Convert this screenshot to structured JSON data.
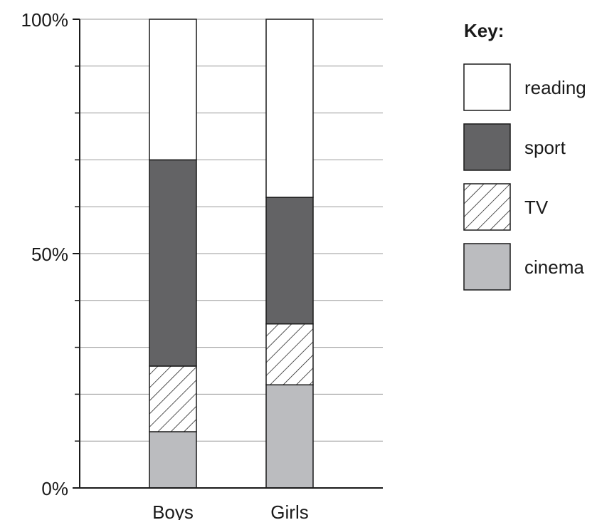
{
  "chart_data": {
    "type": "bar",
    "stacked": true,
    "categories": [
      "Boys",
      "Girls"
    ],
    "series": [
      {
        "name": "cinema",
        "values": [
          12,
          22
        ],
        "color": "#bbbcbf",
        "pattern": "solid"
      },
      {
        "name": "TV",
        "values": [
          14,
          13
        ],
        "color": "#ffffff",
        "pattern": "hatch"
      },
      {
        "name": "sport",
        "values": [
          44,
          27
        ],
        "color": "#636365",
        "pattern": "solid"
      },
      {
        "name": "reading",
        "values": [
          30,
          38
        ],
        "color": "#ffffff",
        "pattern": "solid"
      }
    ],
    "yticks": [
      {
        "value": 0,
        "label": "0%"
      },
      {
        "value": 50,
        "label": "50%"
      },
      {
        "value": 100,
        "label": "100%"
      }
    ],
    "ylim": [
      0,
      100
    ],
    "grid": true,
    "grid_step": 10,
    "legend_title": "Key:",
    "legend_order": [
      "reading",
      "sport",
      "TV",
      "cinema"
    ],
    "legend_position": "right"
  }
}
